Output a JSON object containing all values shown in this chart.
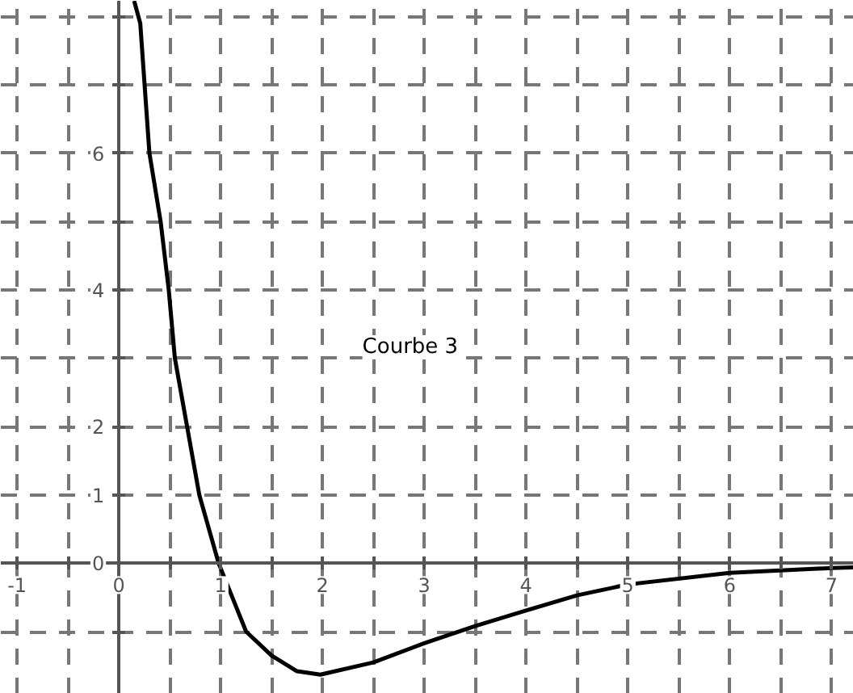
{
  "chart_data": {
    "type": "line",
    "xlim": [
      -1.16,
      7.22
    ],
    "ylim": [
      -1.91,
      8.23
    ],
    "xticks": [
      {
        "value": -1,
        "label": "-1"
      },
      {
        "value": -0.5,
        "label": null
      },
      0,
      {
        "value": 0.5,
        "label": null
      },
      1,
      {
        "value": 1.5,
        "label": null
      },
      2,
      {
        "value": 2.5,
        "label": null
      },
      3,
      {
        "value": 3.5,
        "label": null
      },
      4,
      {
        "value": 4.5,
        "label": null
      },
      5,
      {
        "value": 5.5,
        "label": null
      },
      6,
      {
        "value": 6.5,
        "label": null
      },
      7
    ],
    "yticks": [
      {
        "value": -1,
        "label": null
      },
      0,
      1,
      2,
      {
        "value": 3,
        "label": null
      },
      4,
      {
        "value": 5,
        "label": null
      },
      6,
      {
        "value": 7,
        "label": null
      },
      {
        "value": 8,
        "label": null
      }
    ],
    "grid": true,
    "line_style": "solid",
    "series": [
      {
        "color": "#000000",
        "x": [
          0.15,
          0.21,
          0.3,
          0.41,
          0.49,
          0.55,
          0.67,
          0.79,
          0.98,
          1.25,
          1.5,
          1.75,
          1.98,
          2.5,
          3,
          3.5,
          4,
          4.5,
          5,
          6,
          7,
          7.22
        ],
        "values": [
          8.23,
          7.9,
          6,
          5,
          4,
          3,
          2,
          1,
          0,
          -1,
          -1.35,
          -1.58,
          -1.63,
          -1.45,
          -1.17,
          -0.92,
          -0.69,
          -0.47,
          -0.31,
          -0.14,
          -0.07,
          -0.06
        ]
      }
    ],
    "annotations": [
      "Courbe 3"
    ]
  }
}
